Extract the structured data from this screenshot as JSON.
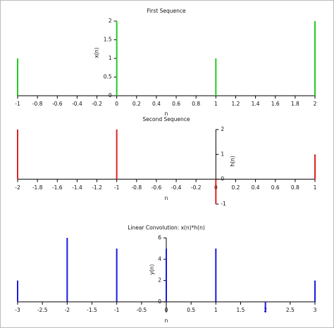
{
  "chart_data": [
    {
      "type": "stem",
      "title": "First Sequence",
      "x_label": "n",
      "y_label": "x(n)",
      "x": [
        -1,
        0,
        1,
        2
      ],
      "values": [
        1,
        2,
        1,
        2
      ],
      "color": "#22cc22",
      "xlim": [
        -1,
        2
      ],
      "xticks": [
        -1,
        -0.8,
        -0.6,
        -0.4,
        -0.2,
        0,
        0.2,
        0.4,
        0.6,
        0.8,
        1,
        1.2,
        1.4,
        1.6,
        1.8,
        2
      ],
      "ylim": [
        0,
        2
      ],
      "yticks": [
        0,
        0.5,
        1,
        1.5,
        2
      ]
    },
    {
      "type": "stem",
      "title": "Second Sequence",
      "x_label": "n",
      "y_label": "h(n)",
      "x": [
        -2,
        -1,
        0,
        1
      ],
      "values": [
        2,
        2,
        -1,
        1
      ],
      "color": "#dd2222",
      "xlim": [
        -2,
        1
      ],
      "xticks": [
        -2,
        -1.8,
        -1.6,
        -1.4,
        -1.2,
        -1,
        -0.8,
        -0.6,
        -0.4,
        -0.2,
        0,
        0.2,
        0.4,
        0.6,
        0.8,
        1
      ],
      "ylim": [
        -1,
        2
      ],
      "yticks": [
        -1,
        0,
        1,
        2
      ]
    },
    {
      "type": "stem",
      "title": "Linear Convolution: x(n)*h(n)",
      "x_label": "n",
      "y_label": "y(n)",
      "x": [
        -3,
        -2,
        -1,
        0,
        1,
        2,
        3
      ],
      "values": [
        2,
        6,
        5,
        5,
        5,
        -1,
        2
      ],
      "color": "#1a1add",
      "xlim": [
        -3,
        3
      ],
      "xticks": [
        -3,
        -2.5,
        -2,
        -1.5,
        -1,
        -0.5,
        0,
        0.5,
        1,
        1.5,
        2,
        2.5,
        3
      ],
      "ylim": [
        -1,
        6
      ],
      "yticks": [
        0,
        2,
        4,
        6
      ]
    }
  ]
}
